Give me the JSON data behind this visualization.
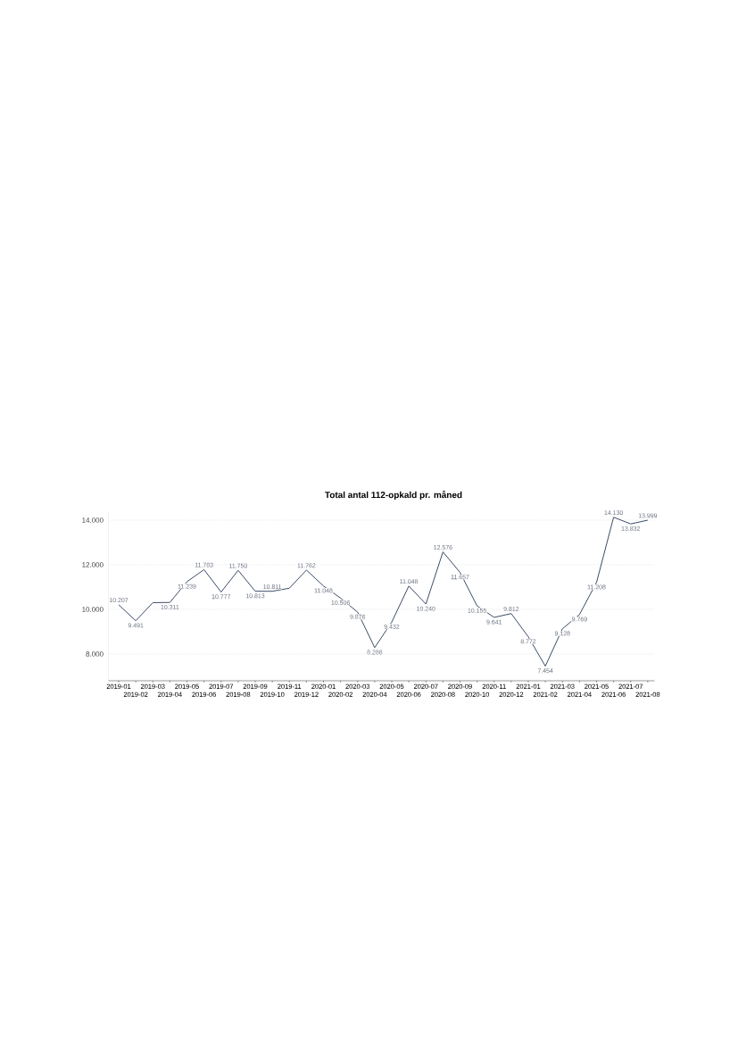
{
  "chart_data": {
    "type": "line",
    "title": "Total antal 112-opkald pr. måned",
    "categories": [
      "2019-01",
      "2019-02",
      "2019-03",
      "2019-04",
      "2019-05",
      "2019-06",
      "2019-07",
      "2019-08",
      "2019-09",
      "2019-10",
      "2019-11",
      "2019-12",
      "2020-01",
      "2020-02",
      "2020-03",
      "2020-04",
      "2020-05",
      "2020-06",
      "2020-07",
      "2020-08",
      "2020-09",
      "2020-10",
      "2020-11",
      "2020-12",
      "2021-01",
      "2021-02",
      "2021-03",
      "2021-04",
      "2021-05",
      "2021-06",
      "2021-07",
      "2021-08"
    ],
    "values": [
      10207,
      9491,
      10300,
      10311,
      11239,
      11783,
      10777,
      11750,
      10813,
      10811,
      10950,
      11762,
      11048,
      10506,
      9876,
      8286,
      9432,
      11048,
      10240,
      12576,
      11657,
      10155,
      9641,
      9812,
      8772,
      7454,
      9128,
      9769,
      11208,
      14130,
      13832,
      13999
    ],
    "value_labels": [
      "10.207",
      "9.491",
      null,
      "10.311",
      "11.239",
      "11.783",
      "10.777",
      "11.750",
      "10.813",
      "10.811",
      null,
      "11.762",
      "11.048",
      "10.506",
      "9.876",
      "8.286",
      "9.432",
      "11.048",
      "10.240",
      "12.576",
      "11.657",
      "10.155",
      "9.641",
      "9.812",
      "8.772",
      "7.454",
      "9.128",
      "9.769",
      "11.208",
      "14.130",
      "13.832",
      "13.999"
    ],
    "color": "#3b4a66",
    "ylim": [
      6800,
      14400
    ],
    "yticks": [
      {
        "value": 8000,
        "label": "8.000"
      },
      {
        "value": 10000,
        "label": "10.000"
      },
      {
        "value": 12000,
        "label": "12.000"
      },
      {
        "value": 14000,
        "label": "14.000"
      }
    ],
    "grid": "y",
    "legend": false,
    "marker": "none",
    "line_style": "solid"
  }
}
